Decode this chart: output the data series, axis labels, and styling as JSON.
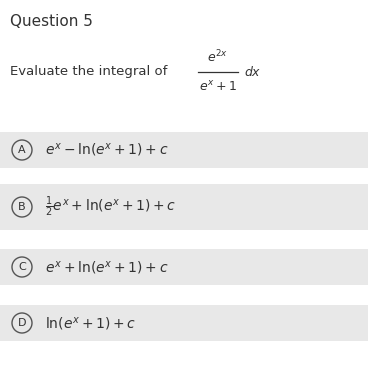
{
  "title": "Question 5",
  "question_text": "Evaluate the integral of",
  "options": [
    {
      "label": "A",
      "latex": "$e^x - \\ln(e^x+1)+c$",
      "tall": false
    },
    {
      "label": "B",
      "latex": "$\\frac{1}{2}e^x + \\ln(e^x+1)+c$",
      "tall": true
    },
    {
      "label": "C",
      "latex": "$e^x + \\ln(e^x+1)+c$",
      "tall": false
    },
    {
      "label": "D",
      "latex": "$\\ln(e^x+1)+c$",
      "tall": false
    }
  ],
  "white_color": "#ffffff",
  "page_bg": "#f0f0f0",
  "text_color": "#333333",
  "option_band_color": "#e8e8e8",
  "circle_edge_color": "#555555",
  "title_fontsize": 11,
  "question_fontsize": 9.5,
  "option_fontsize": 10
}
